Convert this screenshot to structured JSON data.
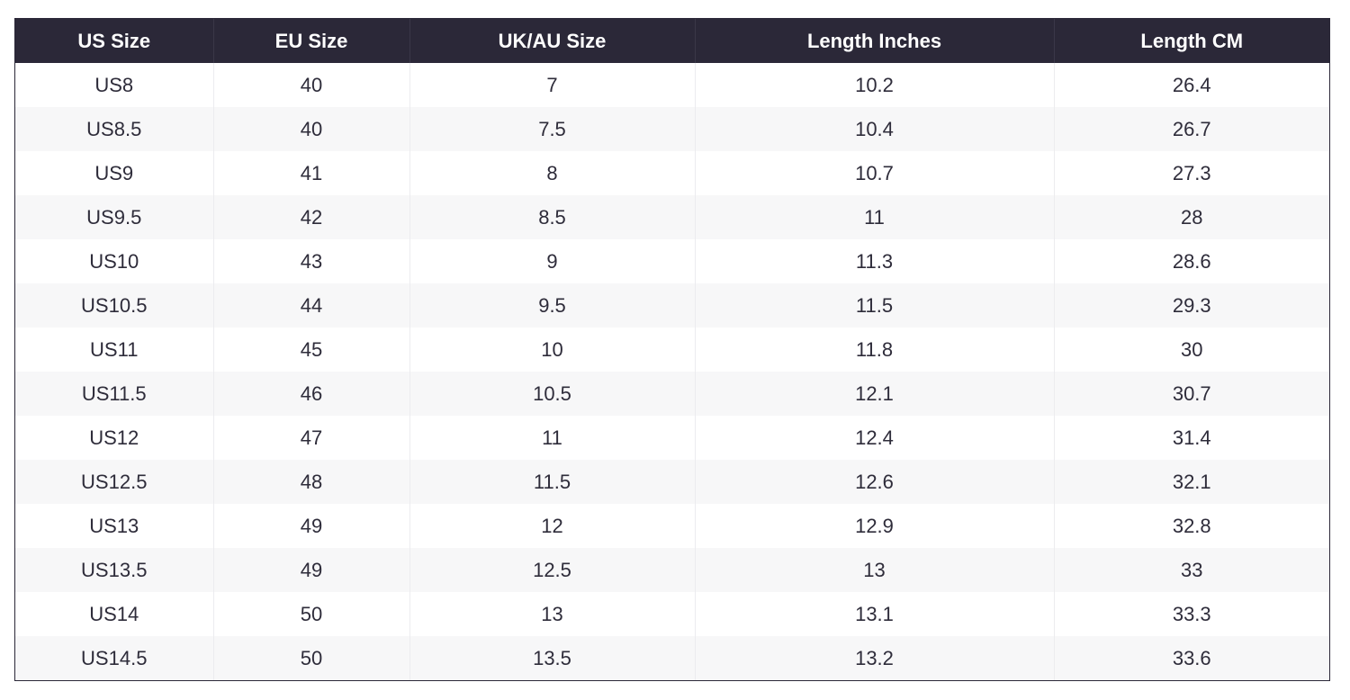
{
  "colors": {
    "header_bg": "#2b2838",
    "header_text": "#ffffff",
    "row_alt": "#f7f7f8",
    "cell_text": "#2e2c3a"
  },
  "table": {
    "headers": [
      "US Size",
      "EU Size",
      "UK/AU Size",
      "Length Inches",
      "Length CM"
    ],
    "rows": [
      [
        "US8",
        "40",
        "7",
        "10.2",
        "26.4"
      ],
      [
        "US8.5",
        "40",
        "7.5",
        "10.4",
        "26.7"
      ],
      [
        "US9",
        "41",
        "8",
        "10.7",
        "27.3"
      ],
      [
        "US9.5",
        "42",
        "8.5",
        "11",
        "28"
      ],
      [
        "US10",
        "43",
        "9",
        "11.3",
        "28.6"
      ],
      [
        "US10.5",
        "44",
        "9.5",
        "11.5",
        "29.3"
      ],
      [
        "US11",
        "45",
        "10",
        "11.8",
        "30"
      ],
      [
        "US11.5",
        "46",
        "10.5",
        "12.1",
        "30.7"
      ],
      [
        "US12",
        "47",
        "11",
        "12.4",
        "31.4"
      ],
      [
        "US12.5",
        "48",
        "11.5",
        "12.6",
        "32.1"
      ],
      [
        "US13",
        "49",
        "12",
        "12.9",
        "32.8"
      ],
      [
        "US13.5",
        "49",
        "12.5",
        "13",
        "33"
      ],
      [
        "US14",
        "50",
        "13",
        "13.1",
        "33.3"
      ],
      [
        "US14.5",
        "50",
        "13.5",
        "13.2",
        "33.6"
      ]
    ]
  }
}
